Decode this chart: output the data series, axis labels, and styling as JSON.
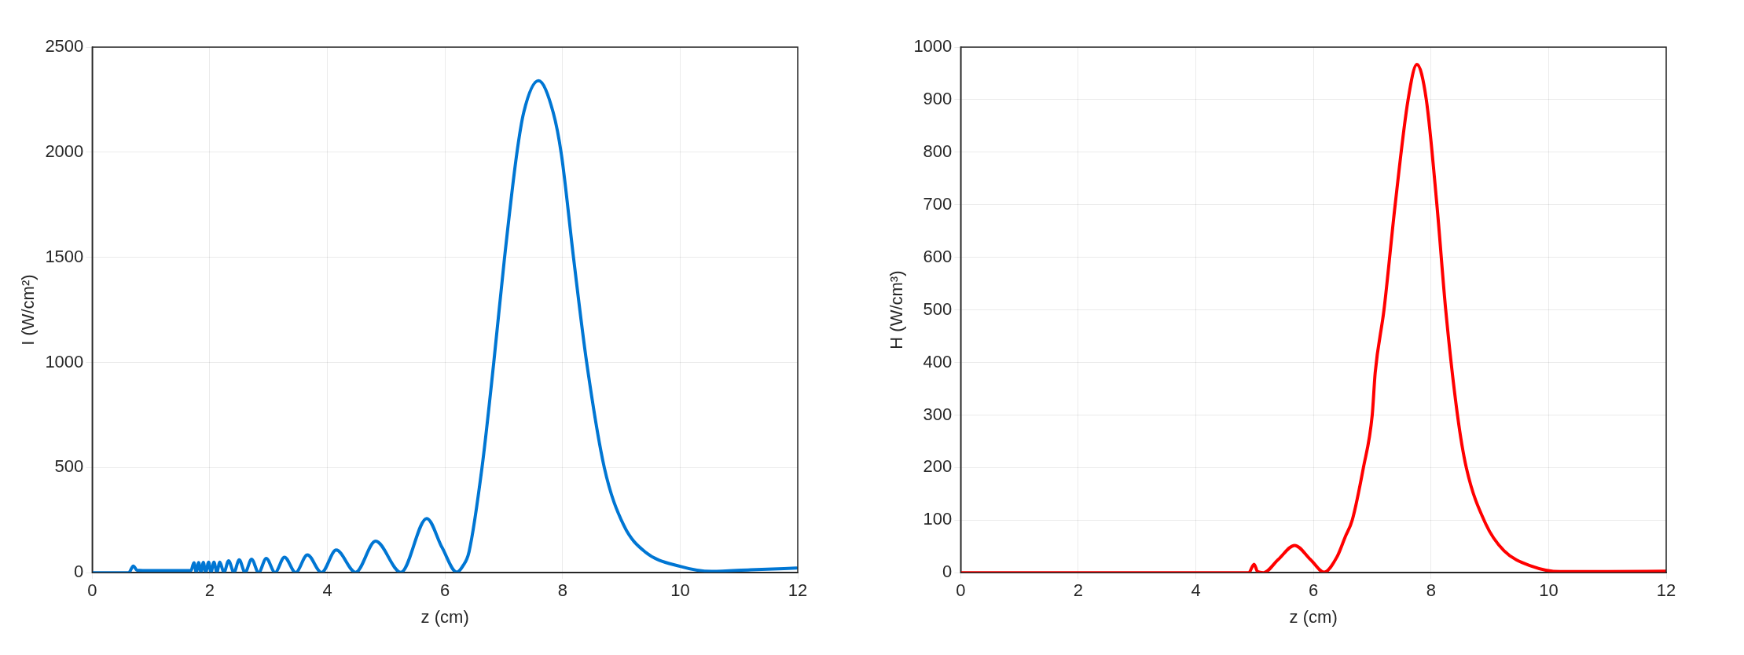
{
  "chart_data": [
    {
      "type": "line",
      "xlabel": "z (cm)",
      "ylabel": "I (W/cm²)",
      "xlim": [
        0,
        12
      ],
      "xticks": [
        0,
        2,
        4,
        6,
        8,
        10,
        12
      ],
      "ylim": [
        0,
        2500
      ],
      "yticks": [
        0,
        500,
        1000,
        1500,
        2000,
        2500
      ],
      "grid": true,
      "legend": false,
      "marker": "none",
      "line_style": "solid",
      "series": [
        {
          "color": "#0076d3",
          "x": [
            0,
            0.62,
            0.7,
            0.76,
            1.0,
            1.5,
            1.68,
            1.73,
            1.77,
            1.81,
            1.85,
            1.89,
            1.93,
            1.98,
            2.02,
            2.07,
            2.12,
            2.17,
            2.24,
            2.32,
            2.41,
            2.5,
            2.6,
            2.71,
            2.83,
            2.96,
            3.11,
            3.27,
            3.46,
            3.66,
            3.9,
            4.15,
            4.48,
            4.82,
            5.25,
            5.69,
            5.95,
            6.2,
            6.3,
            6.41,
            6.63,
            6.83,
            7.01,
            7.22,
            7.34,
            7.59,
            7.84,
            7.98,
            8.19,
            8.41,
            8.71,
            9.04,
            9.4,
            10,
            10.54,
            11.2,
            11.98
          ],
          "values": [
            0,
            0,
            32,
            12,
            10,
            10,
            10,
            47,
            2,
            48,
            2,
            49,
            2,
            50,
            2,
            50,
            2,
            50,
            1,
            57,
            1,
            61,
            1,
            64,
            1,
            68,
            1,
            74,
            1,
            85,
            1,
            108,
            2,
            150,
            2,
            258,
            120,
            3,
            30,
            100,
            500,
            1000,
            1490,
            1990,
            2190,
            2340,
            2190,
            1990,
            1490,
            1000,
            500,
            226,
            100,
            30,
            6,
            14,
            22
          ]
        }
      ]
    },
    {
      "type": "line",
      "xlabel": "z (cm)",
      "ylabel": "H (W/cm³)",
      "xlim": [
        0,
        12
      ],
      "xticks": [
        0,
        2,
        4,
        6,
        8,
        10,
        12
      ],
      "ylim": [
        0,
        1000
      ],
      "yticks": [
        0,
        100,
        200,
        300,
        400,
        500,
        600,
        700,
        800,
        900,
        1000
      ],
      "grid": true,
      "legend": false,
      "marker": "none",
      "line_style": "solid",
      "series": [
        {
          "color": "#ff0000",
          "x": [
            0,
            4.9,
            4.99,
            5.05,
            5.15,
            5.4,
            5.68,
            5.95,
            6.18,
            6.4,
            6.54,
            6.66,
            6.85,
            7.0,
            7.05,
            7.2,
            7.39,
            7.61,
            7.76,
            7.92,
            8.1,
            8.25,
            8.45,
            8.6,
            8.93,
            9.24,
            9.72,
            10.2,
            11,
            12
          ],
          "values": [
            0,
            0,
            16,
            2,
            0,
            25,
            52,
            25,
            1,
            30,
            68,
            100,
            200,
            300,
            380,
            500,
            700,
            900,
            967,
            900,
            700,
            500,
            300,
            200,
            93,
            42,
            12,
            2,
            2,
            3
          ]
        }
      ]
    }
  ]
}
